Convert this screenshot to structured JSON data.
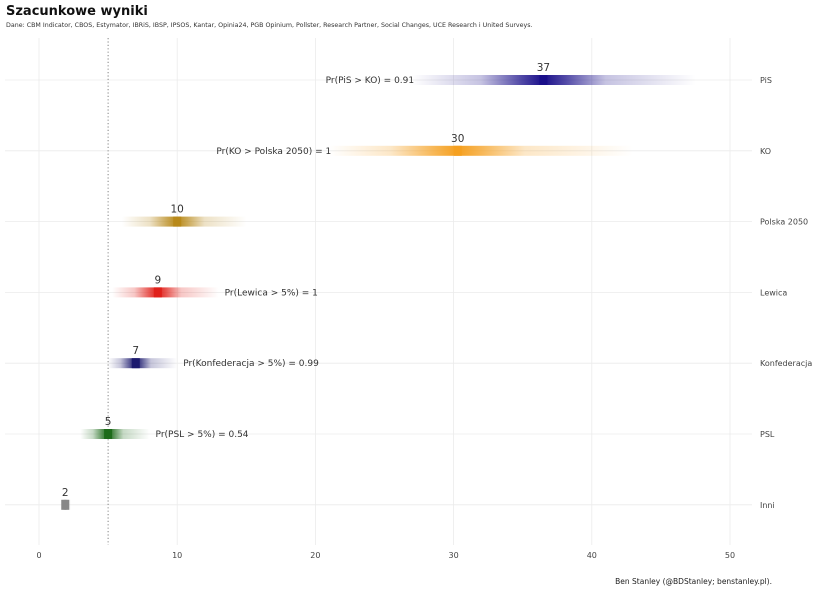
{
  "chart_data": {
    "type": "interval",
    "title": "Szacunkowe wyniki",
    "subtitle": "Dane: CBM Indicator, CBOS, Estymator, IBRiS, IBSP, IPSOS, Kantar, Opinia24, PGB Opinium, Pollster, Research Partner, Social Changes, UCE Research i United Surveys.",
    "caption": "Ben Stanley (@BDStanley; benstanley.pl).",
    "xlim": [
      -2.5,
      52
    ],
    "xticks": [
      0,
      10,
      20,
      30,
      40,
      50
    ],
    "threshold": 5,
    "parties": [
      {
        "name": "PiS",
        "median": 36.5,
        "label": "37",
        "low": 27,
        "high": 47.5,
        "color": "#1a0f8a",
        "prob": "Pr(PiS > KO)  =  0.91"
      },
      {
        "name": "KO",
        "median": 30.3,
        "label": "30",
        "low": 21,
        "high": 43,
        "color": "#f5a020",
        "prob": "Pr(KO > Polska 2050)  =  1"
      },
      {
        "name": "Polska 2050",
        "median": 10,
        "label": "10",
        "low": 6,
        "high": 15,
        "color": "#b8891a",
        "prob": ""
      },
      {
        "name": "Lewica",
        "median": 8.6,
        "label": "9",
        "low": 5.3,
        "high": 13,
        "color": "#e0201a",
        "prob": "Pr(Lewica > 5%)  =  1"
      },
      {
        "name": "Konfederacja",
        "median": 7,
        "label": "7",
        "low": 5,
        "high": 10,
        "color": "#1c1a6e",
        "prob": "Pr(Konfederacja > 5%)  =  0.99"
      },
      {
        "name": "PSL",
        "median": 5,
        "label": "5",
        "low": 3,
        "high": 8,
        "color": "#1d6b1a",
        "prob": "Pr(PSL > 5%)  =  0.54"
      },
      {
        "name": "Inni",
        "median": 1.9,
        "label": "2",
        "low": 1.6,
        "high": 2.3,
        "color": "#888888",
        "prob": ""
      }
    ]
  }
}
